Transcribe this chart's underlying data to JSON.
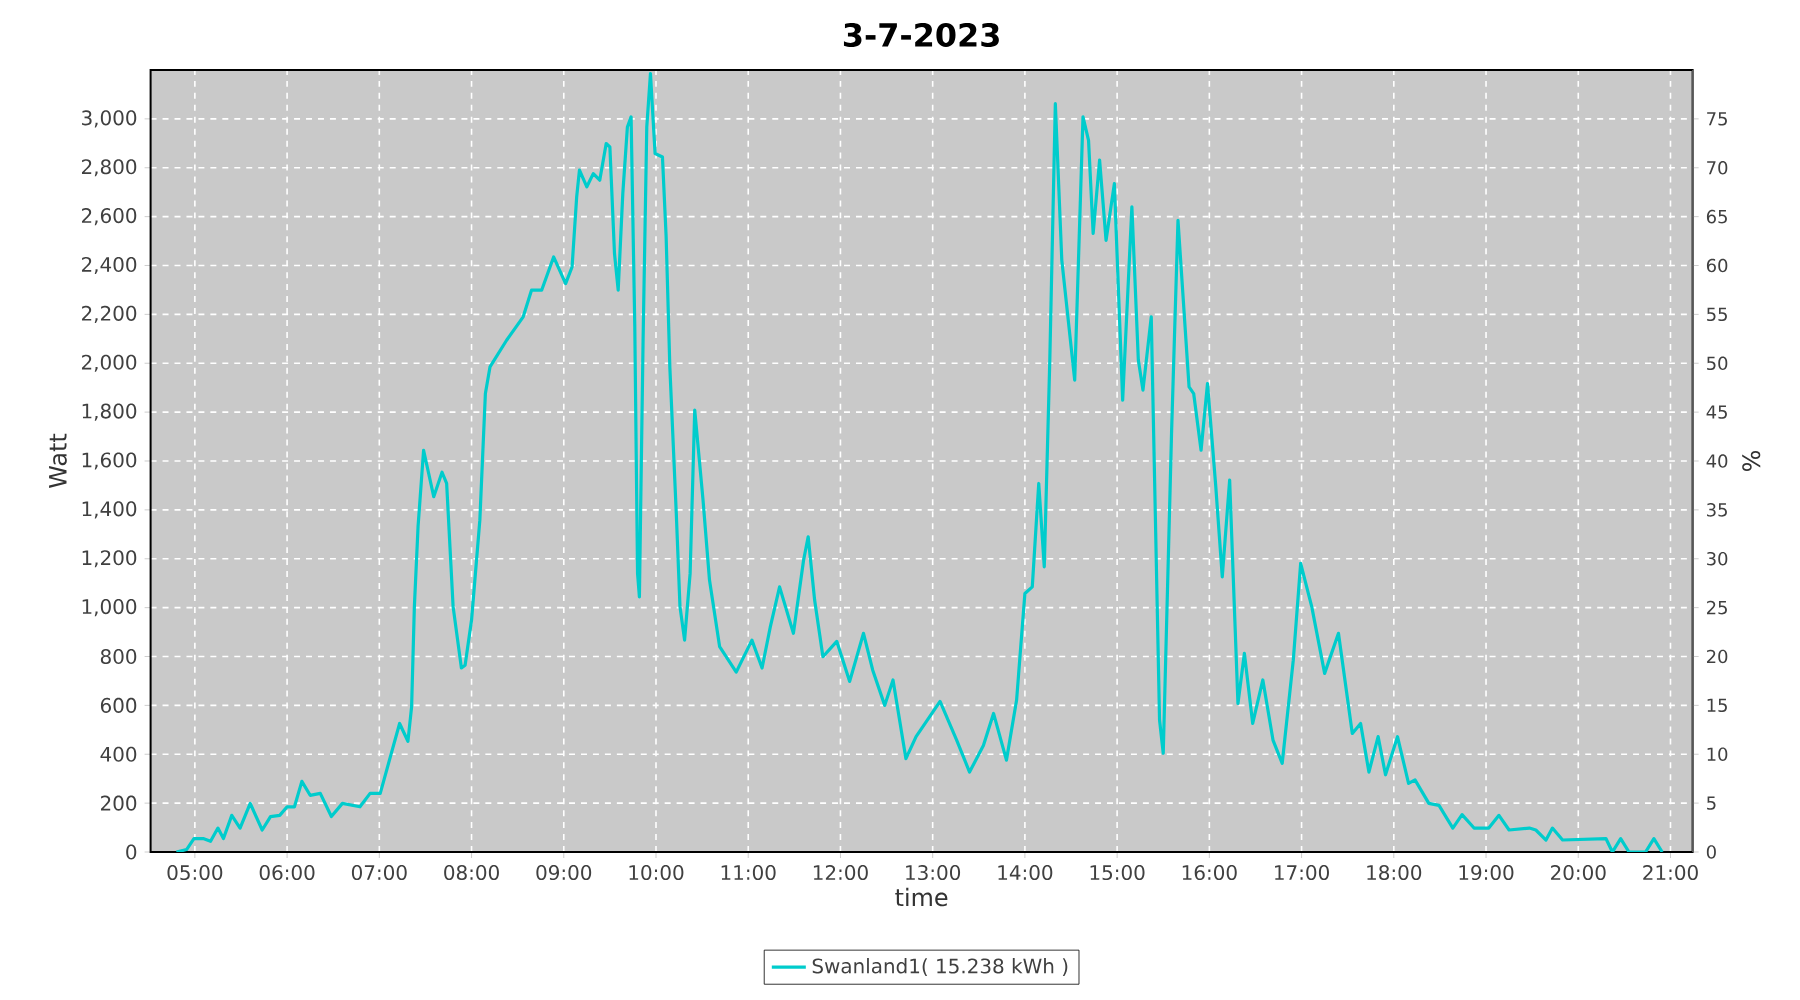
{
  "chart_data": {
    "type": "line",
    "title": "3-7-2023",
    "xlabel": "time",
    "ylabel": "Watt",
    "y2label": "%",
    "x": [
      4.8,
      4.91,
      4.99,
      5.09,
      5.17,
      5.25,
      5.31,
      5.4,
      5.49,
      5.6,
      5.73,
      5.82,
      5.92,
      6.0,
      6.08,
      6.16,
      6.25,
      6.36,
      6.48,
      6.6,
      6.79,
      6.9,
      7.01,
      7.12,
      7.22,
      7.31,
      7.35,
      7.38,
      7.42,
      7.48,
      7.59,
      7.68,
      7.73,
      7.8,
      7.89,
      7.93,
      8.0,
      8.09,
      8.15,
      8.2,
      8.38,
      8.56,
      8.65,
      8.76,
      8.89,
      9.02,
      9.09,
      9.14,
      9.17,
      9.25,
      9.32,
      9.39,
      9.46,
      9.5,
      9.55,
      9.59,
      9.64,
      9.69,
      9.73,
      9.77,
      9.8,
      9.82,
      9.86,
      9.9,
      9.94,
      9.99,
      10.07,
      10.11,
      10.15,
      10.22,
      10.26,
      10.31,
      10.37,
      10.42,
      10.51,
      10.58,
      10.69,
      10.87,
      11.04,
      11.15,
      11.24,
      11.34,
      11.49,
      11.6,
      11.65,
      11.72,
      11.81,
      11.96,
      12.1,
      12.25,
      12.35,
      12.48,
      12.57,
      12.71,
      12.82,
      13.08,
      13.26,
      13.4,
      13.55,
      13.66,
      13.8,
      13.91,
      14.0,
      14.08,
      14.15,
      14.21,
      14.27,
      14.33,
      14.4,
      14.54,
      14.63,
      14.69,
      14.74,
      14.81,
      14.88,
      14.97,
      15.06,
      15.16,
      15.23,
      15.28,
      15.37,
      15.46,
      15.5,
      15.59,
      15.66,
      15.78,
      15.83,
      15.91,
      15.98,
      16.07,
      16.14,
      16.22,
      16.31,
      16.38,
      16.47,
      16.58,
      16.69,
      16.79,
      16.91,
      16.99,
      17.11,
      17.25,
      17.4,
      17.55,
      17.64,
      17.73,
      17.83,
      17.91,
      18.04,
      18.16,
      18.23,
      18.38,
      18.49,
      18.64,
      18.74,
      18.87,
      19.03,
      19.14,
      19.25,
      19.47,
      19.54,
      19.65,
      19.72,
      19.83,
      20.3,
      20.37,
      20.46,
      20.55,
      20.73,
      20.82,
      20.91
    ],
    "series": [
      {
        "name": "Swanland1( 15.238 kWh )",
        "color": "#00cccc",
        "values": [
          0,
          10,
          55,
          55,
          44,
          98,
          55,
          150,
          98,
          199,
          90,
          145,
          150,
          185,
          185,
          289,
          232,
          240,
          145,
          199,
          185,
          240,
          240,
          390,
          526,
          453,
          594,
          1004,
          1331,
          1644,
          1454,
          1554,
          1508,
          1004,
          753,
          764,
          949,
          1358,
          1876,
          1985,
          2094,
          2190,
          2299,
          2299,
          2435,
          2326,
          2394,
          2681,
          2790,
          2722,
          2776,
          2749,
          2899,
          2885,
          2449,
          2299,
          2694,
          2967,
          3008,
          2149,
          1140,
          1044,
          2094,
          2967,
          3185,
          2858,
          2844,
          2517,
          1985,
          1385,
          1004,
          867,
          1140,
          1808,
          1440,
          1113,
          840,
          736,
          867,
          753,
          922,
          1085,
          895,
          1194,
          1290,
          1031,
          799,
          862,
          698,
          895,
          744,
          600,
          704,
          382,
          472,
          616,
          458,
          327,
          436,
          567,
          376,
          622,
          1058,
          1085,
          1508,
          1167,
          2013,
          3062,
          2422,
          1931,
          3008,
          2912,
          2531,
          2831,
          2503,
          2735,
          1849,
          2640,
          2013,
          1890,
          2190,
          540,
          404,
          1713,
          2585,
          1903,
          1876,
          1644,
          1917,
          1494,
          1126,
          1522,
          608,
          813,
          526,
          704,
          458,
          363,
          785,
          1181,
          1004,
          731,
          895,
          485,
          526,
          327,
          472,
          316,
          472,
          281,
          295,
          199,
          191,
          98,
          153,
          98,
          98,
          150,
          90,
          98,
          90,
          49,
          98,
          49,
          55,
          0,
          55,
          0,
          0,
          55,
          0
        ]
      }
    ],
    "xlim": [
      4.52,
      21.24
    ],
    "ylim": [
      0,
      3200
    ],
    "y2lim": [
      0,
      80
    ],
    "xticks": [
      {
        "value": 5,
        "label": "05:00"
      },
      {
        "value": 6,
        "label": "06:00"
      },
      {
        "value": 7,
        "label": "07:00"
      },
      {
        "value": 8,
        "label": "08:00"
      },
      {
        "value": 9,
        "label": "09:00"
      },
      {
        "value": 10,
        "label": "10:00"
      },
      {
        "value": 11,
        "label": "11:00"
      },
      {
        "value": 12,
        "label": "12:00"
      },
      {
        "value": 13,
        "label": "13:00"
      },
      {
        "value": 14,
        "label": "14:00"
      },
      {
        "value": 15,
        "label": "15:00"
      },
      {
        "value": 16,
        "label": "16:00"
      },
      {
        "value": 17,
        "label": "17:00"
      },
      {
        "value": 18,
        "label": "18:00"
      },
      {
        "value": 19,
        "label": "19:00"
      },
      {
        "value": 20,
        "label": "20:00"
      },
      {
        "value": 21,
        "label": "21:00"
      }
    ],
    "yticks": [
      0,
      200,
      400,
      600,
      800,
      {
        "value": 1000,
        "label": "1,000"
      },
      {
        "value": 1200,
        "label": "1,200"
      },
      {
        "value": 1400,
        "label": "1,400"
      },
      {
        "value": 1600,
        "label": "1,600"
      },
      {
        "value": 1800,
        "label": "1,800"
      },
      {
        "value": 2000,
        "label": "2,000"
      },
      {
        "value": 2200,
        "label": "2,200"
      },
      {
        "value": 2400,
        "label": "2,400"
      },
      {
        "value": 2600,
        "label": "2,600"
      },
      {
        "value": 2800,
        "label": "2,800"
      },
      {
        "value": 3000,
        "label": "3,000"
      }
    ],
    "y2ticks": [
      0,
      5,
      10,
      15,
      20,
      25,
      30,
      35,
      40,
      45,
      50,
      55,
      60,
      65,
      70,
      75
    ],
    "grid": true,
    "legend": "bottom",
    "marker": "none",
    "line_style": "solid"
  }
}
